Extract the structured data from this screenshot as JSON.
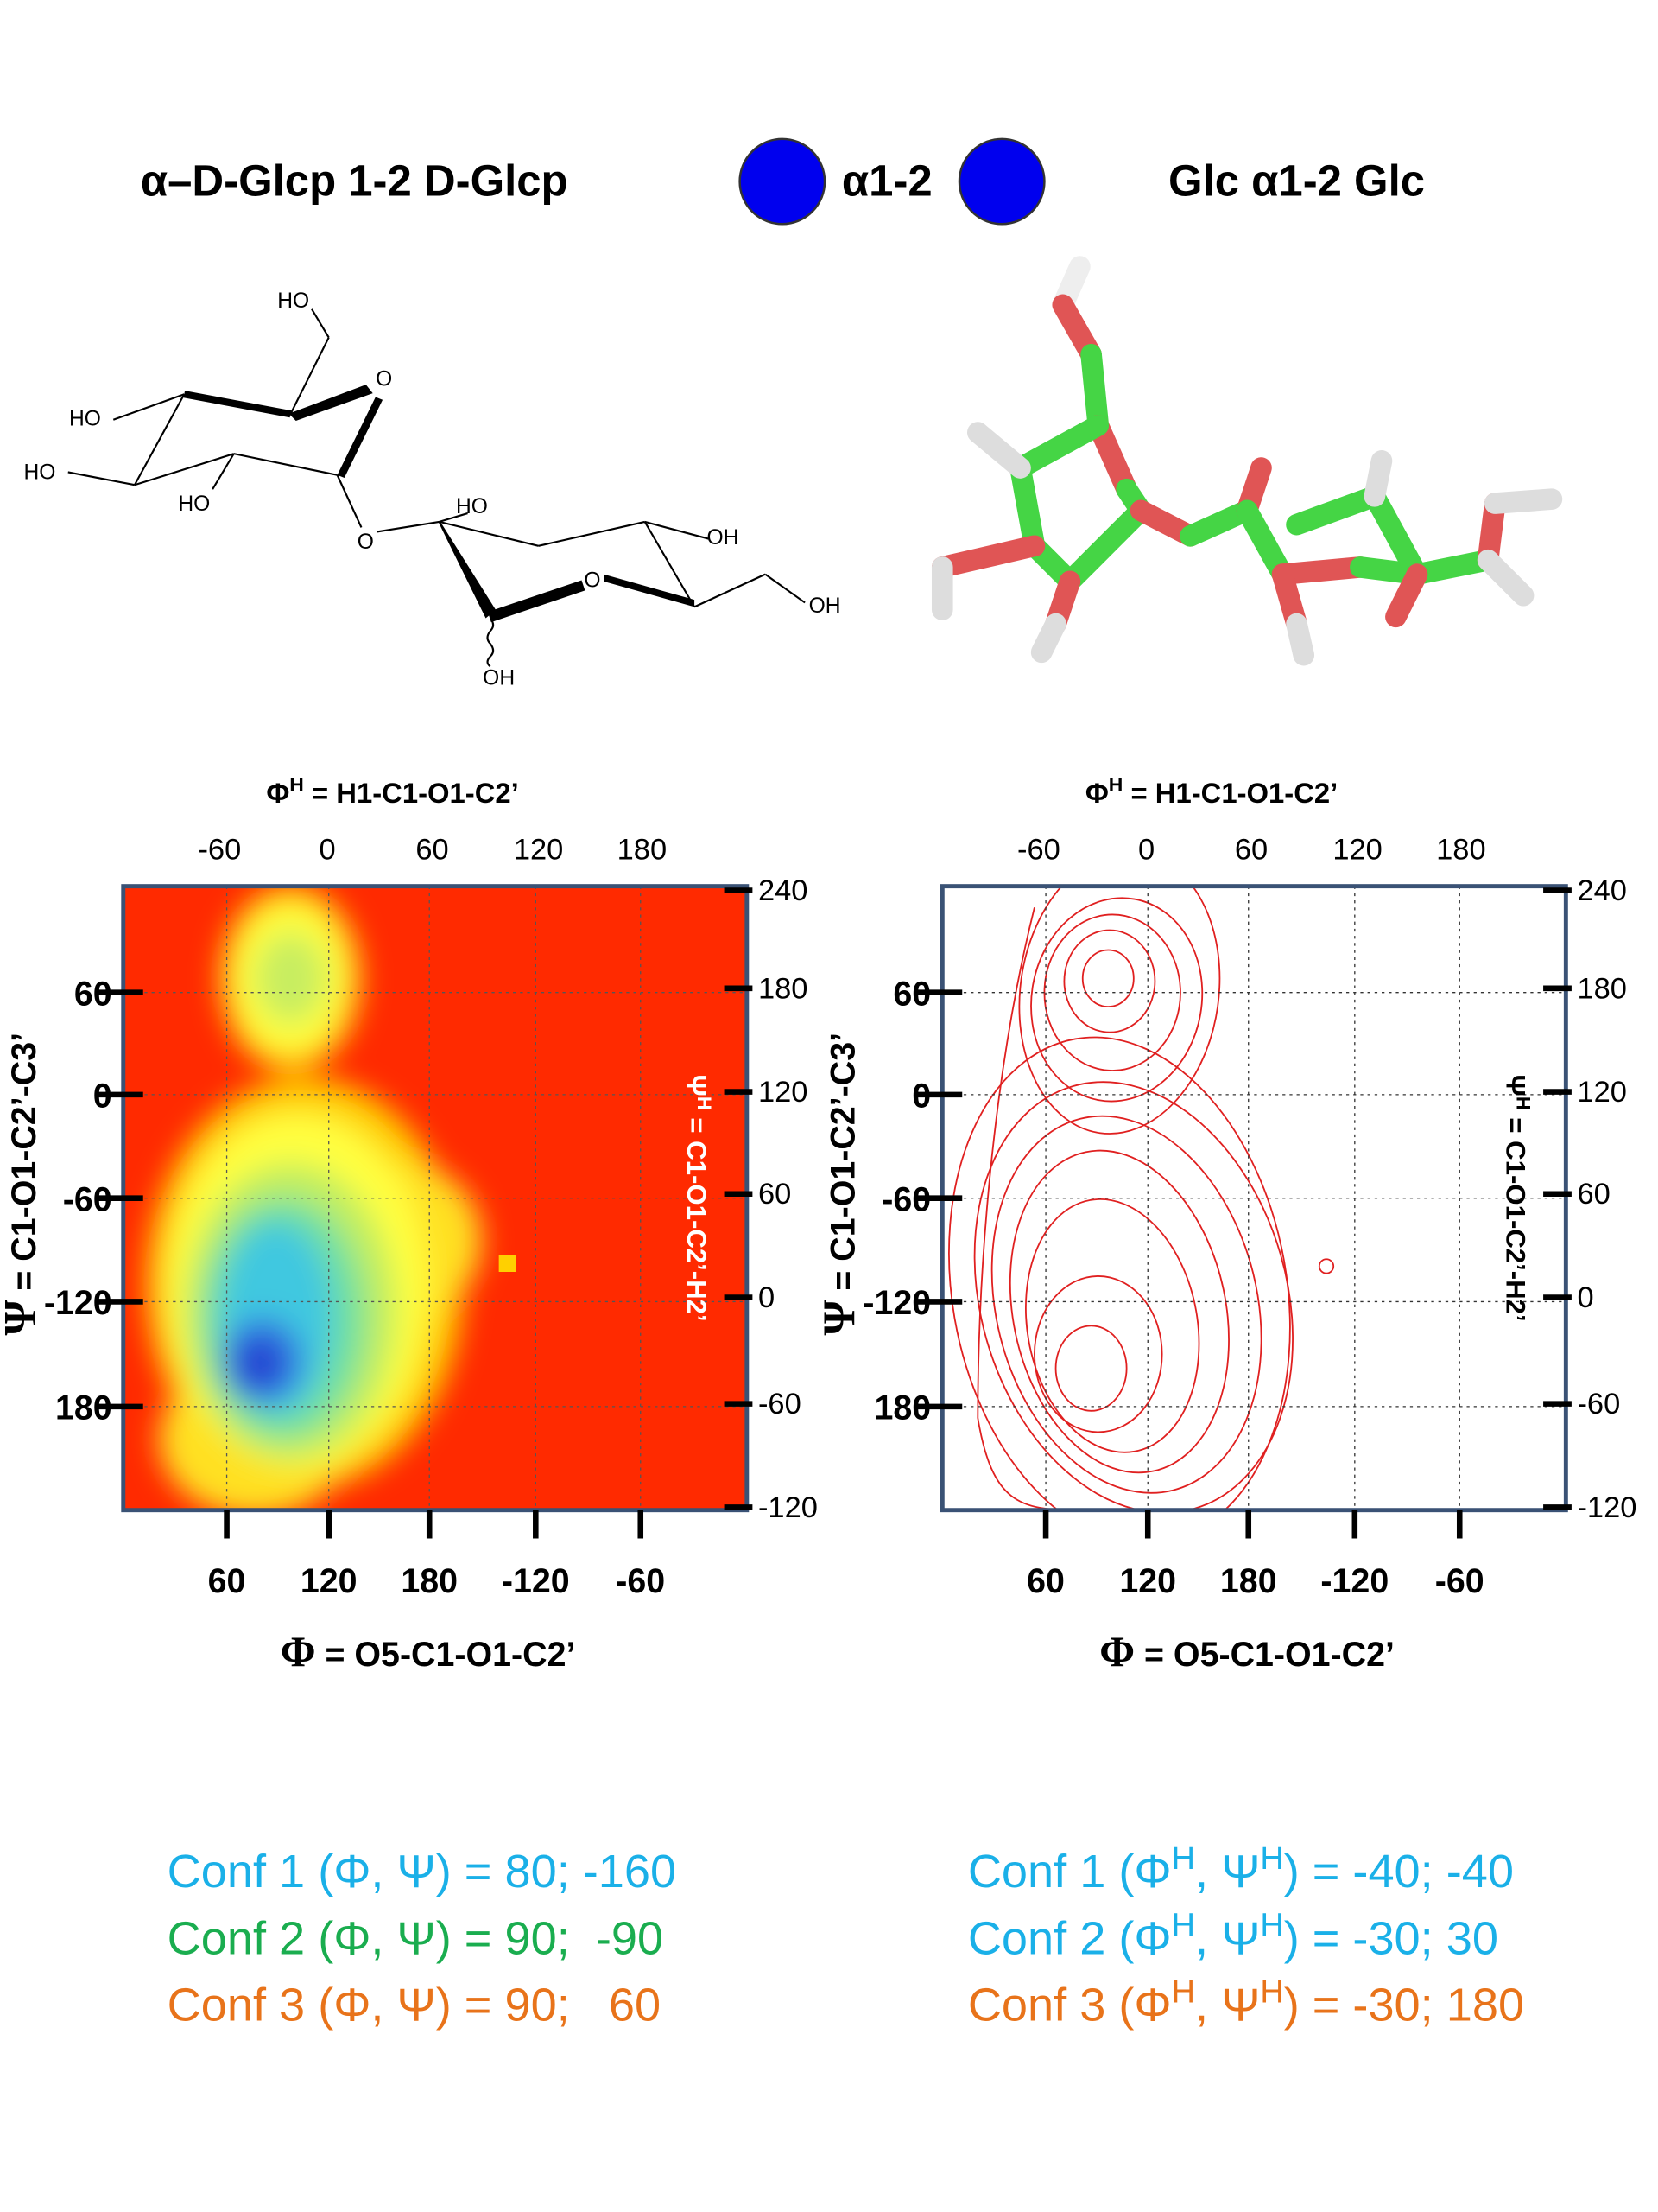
{
  "header": {
    "left_title": "α–D-Glcp 1-2 D-Glcp",
    "symbol_label": "α1-2",
    "right_title": "Glc α1-2 Glc"
  },
  "structure_labels": [
    "HO",
    "O",
    "HO",
    "HO",
    "HO",
    "O",
    "HO",
    "OH",
    "O",
    "OH",
    "OH"
  ],
  "plots": [
    {
      "top_axis_label": [
        "Φ",
        "H",
        " = H1-C1-O1-C2’"
      ],
      "top_ticks": [
        -60,
        0,
        60,
        120,
        180
      ],
      "right_ticks": [
        240,
        180,
        120,
        60,
        0,
        -60,
        -120
      ],
      "left_ticks": [
        60,
        0,
        -60,
        -120,
        180
      ],
      "bottom_ticks": [
        60,
        120,
        180,
        -120,
        -60
      ],
      "bottom_axis_label": [
        "Φ",
        " = O5-C1-O1-C2’"
      ],
      "left_axis_label": [
        "Ψ",
        " = C1-O1-C2’-C3’"
      ],
      "right_axis_label": [
        "Ψ",
        "H",
        " = C1-O1-C2’-H2’"
      ]
    },
    {
      "top_axis_label": [
        "Φ",
        "H",
        " = H1-C1-O1-C2’"
      ],
      "top_ticks": [
        -60,
        0,
        60,
        120,
        180
      ],
      "right_ticks": [
        240,
        180,
        120,
        60,
        0,
        -60,
        -120
      ],
      "left_ticks": [
        60,
        0,
        -60,
        -120,
        180
      ],
      "bottom_ticks": [
        60,
        120,
        180,
        -120,
        -60
      ],
      "bottom_axis_label": [
        "Φ",
        " = O5-C1-O1-C2’"
      ],
      "left_axis_label": [
        "Ψ",
        " = C1-O1-C2’-C3’"
      ],
      "right_axis_label": [
        "Ψ",
        "H",
        " = C1-O1-C2’-H2’"
      ]
    }
  ],
  "conformations": {
    "left": [
      [
        "Conf 1 (Φ, Ψ) = 80; -160"
      ],
      [
        "Conf 2 (Φ, Ψ) = 90;  -90"
      ],
      [
        "Conf 3 (Φ, Ψ) = 90;   60"
      ]
    ],
    "right": [
      [
        "Conf 1 (Φ",
        "H",
        ", Ψ",
        "H",
        ") = -40; -40"
      ],
      [
        "Conf 2 (Φ",
        "H",
        ", Ψ",
        "H",
        ") = -30; 30"
      ],
      [
        "Conf 3 (Φ",
        "H",
        ", Ψ",
        "H",
        ") = -30; 180"
      ]
    ]
  }
}
